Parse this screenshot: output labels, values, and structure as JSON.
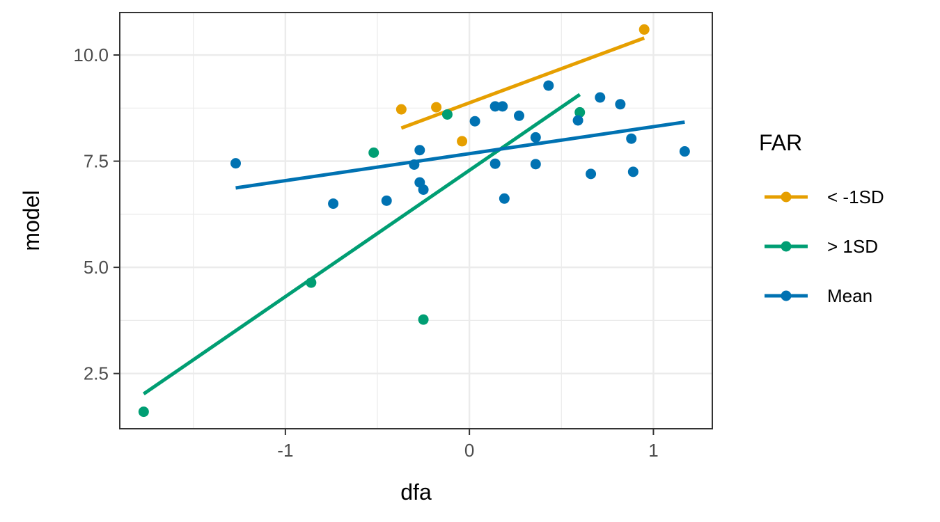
{
  "chart_data": {
    "type": "scatter",
    "xlabel": "dfa",
    "ylabel": "model",
    "xlim": [
      -1.9,
      1.32
    ],
    "ylim": [
      1.2,
      11.0
    ],
    "x_ticks": [
      -1,
      0,
      1
    ],
    "x_tick_labels": [
      "-1",
      "0",
      "1"
    ],
    "x_minor_ticks": [
      -1.5,
      -0.5,
      0.5
    ],
    "y_ticks": [
      2.5,
      5.0,
      7.5,
      10.0
    ],
    "y_tick_labels": [
      "2.5",
      "5.0",
      "7.5",
      "10.0"
    ],
    "y_minor_ticks": [
      3.75,
      6.25,
      8.75
    ],
    "grid": true,
    "legend": {
      "title": "FAR",
      "position": "right"
    },
    "series": [
      {
        "name": "< -1SD",
        "color": "#E69F00",
        "points": [
          {
            "x": -0.37,
            "y": 8.72
          },
          {
            "x": -0.18,
            "y": 8.77
          },
          {
            "x": -0.04,
            "y": 7.97
          },
          {
            "x": 0.95,
            "y": 10.6
          }
        ],
        "fit": {
          "x": [
            -0.37,
            0.95
          ],
          "y": [
            8.28,
            10.4
          ]
        }
      },
      {
        "name": "> 1SD",
        "color": "#009E73",
        "points": [
          {
            "x": -1.77,
            "y": 1.6
          },
          {
            "x": -0.86,
            "y": 4.64
          },
          {
            "x": -0.52,
            "y": 7.7
          },
          {
            "x": -0.25,
            "y": 3.77
          },
          {
            "x": -0.12,
            "y": 8.6
          },
          {
            "x": 0.6,
            "y": 8.65
          }
        ],
        "fit": {
          "x": [
            -1.77,
            0.6
          ],
          "y": [
            2.02,
            9.07
          ]
        }
      },
      {
        "name": "Mean",
        "color": "#0072B2",
        "points": [
          {
            "x": -1.27,
            "y": 7.45
          },
          {
            "x": -0.74,
            "y": 6.5
          },
          {
            "x": -0.45,
            "y": 6.57
          },
          {
            "x": -0.3,
            "y": 7.42
          },
          {
            "x": -0.27,
            "y": 7.76
          },
          {
            "x": -0.27,
            "y": 7.0
          },
          {
            "x": -0.25,
            "y": 6.83
          },
          {
            "x": 0.03,
            "y": 8.44
          },
          {
            "x": 0.14,
            "y": 8.79
          },
          {
            "x": 0.14,
            "y": 7.44
          },
          {
            "x": 0.18,
            "y": 8.79
          },
          {
            "x": 0.19,
            "y": 6.62
          },
          {
            "x": 0.27,
            "y": 8.57
          },
          {
            "x": 0.36,
            "y": 7.43
          },
          {
            "x": 0.36,
            "y": 8.06
          },
          {
            "x": 0.43,
            "y": 9.28
          },
          {
            "x": 0.59,
            "y": 8.46
          },
          {
            "x": 0.66,
            "y": 7.2
          },
          {
            "x": 0.71,
            "y": 9.0
          },
          {
            "x": 0.82,
            "y": 8.84
          },
          {
            "x": 0.88,
            "y": 8.03
          },
          {
            "x": 0.89,
            "y": 7.25
          },
          {
            "x": 1.17,
            "y": 7.73
          }
        ],
        "fit": {
          "x": [
            -1.27,
            1.17
          ],
          "y": [
            6.87,
            8.42
          ]
        }
      }
    ]
  }
}
